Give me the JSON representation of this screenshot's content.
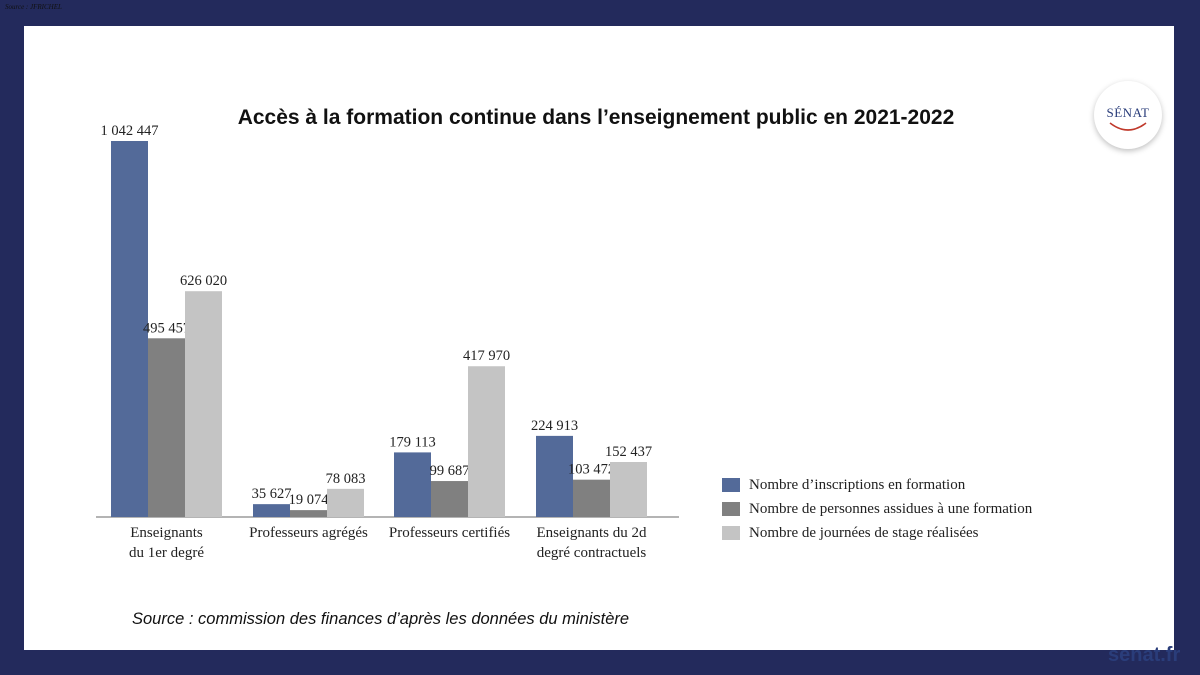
{
  "header": {
    "small_source": "Source : JFRICHEL"
  },
  "logo": {
    "text": "SÉNAT"
  },
  "footer": {
    "source": "Source : commission des finances d’après les données du ministère",
    "site": "senat.fr"
  },
  "chart_data": {
    "type": "bar",
    "title": "Accès à la formation continue dans l’enseignement public en 2021-2022",
    "categories": [
      [
        "Enseignants",
        "du 1er degré"
      ],
      [
        "Professeurs agrégés"
      ],
      [
        "Professeurs certifiés"
      ],
      [
        "Enseignants du 2d",
        "degré contractuels"
      ]
    ],
    "series": [
      {
        "name": "Nombre d’inscriptions en formation",
        "color": "#536a99",
        "values": [
          1042447,
          35627,
          179113,
          224913
        ],
        "labels": [
          "1 042 447",
          "35 627",
          "179 113",
          "224 913"
        ]
      },
      {
        "name": "Nombre de personnes assidues à une formation",
        "color": "#808080",
        "values": [
          495457,
          19074,
          99687,
          103472
        ],
        "labels": [
          "495 457",
          "19 074",
          "99 687",
          "103 472"
        ]
      },
      {
        "name": "Nombre de journées de stage réalisées",
        "color": "#c4c4c4",
        "values": [
          626020,
          78083,
          417970,
          152437
        ],
        "labels": [
          "626 020",
          "78 083",
          "417 970",
          "152 437"
        ]
      }
    ],
    "ylim": [
      0,
      1042447
    ],
    "legend_position": "right",
    "grid": false
  }
}
